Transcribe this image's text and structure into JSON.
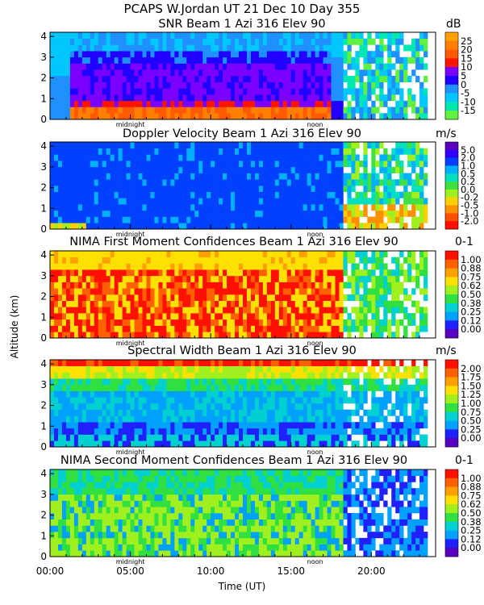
{
  "title": "PCAPS W.Jordan UT  21 Dec 10 Day 355",
  "y_axis_label": "Altitude (km)",
  "x_axis_label": "Time (UT)",
  "x_ticks": [
    "00:00",
    "05:00",
    "10:00",
    "15:00",
    "20:00"
  ],
  "x_tick_hours": [
    0,
    5,
    10,
    15,
    20
  ],
  "markers": [
    {
      "label": "midnight",
      "hour": 5.0
    },
    {
      "label": "noon",
      "hour": 16.5
    }
  ],
  "chart_data": [
    {
      "type": "heatmap",
      "title": "SNR Beam 1 Azi 316 Elev 90",
      "unit": "dB",
      "xlim": [
        0,
        24
      ],
      "ylim": [
        0,
        4.2
      ],
      "y_ticks": [
        "0",
        "1",
        "2",
        "3",
        "4"
      ],
      "colorbar_labels": [
        "25",
        "20",
        "15",
        "10",
        "5",
        "0",
        "-5",
        "-10",
        "-15"
      ],
      "colorbar_colors": [
        "#ffa000",
        "#ff8000",
        "#ff5a00",
        "#ff1400",
        "#7a00ff",
        "#2000ff",
        "#1e90ff",
        "#00c8ff",
        "#00e8b0",
        "#60f040"
      ]
    },
    {
      "type": "heatmap",
      "title": "Doppler Velocity Beam 1 Azi 316 Elev 90",
      "unit": "m/s",
      "xlim": [
        0,
        24
      ],
      "ylim": [
        0,
        4.2
      ],
      "y_ticks": [
        "0",
        "1",
        "2",
        "3",
        "4"
      ],
      "colorbar_labels": [
        "5.0",
        "2.0",
        "1.0",
        "0.5",
        "0.2",
        "0.0",
        "-0.2",
        "-0.5",
        "-1.0",
        "-2.0"
      ],
      "colorbar_colors": [
        "#5a00c0",
        "#3000ff",
        "#0040ff",
        "#00b0ff",
        "#00e0c0",
        "#40e040",
        "#a0f020",
        "#ffd000",
        "#ff9000",
        "#ff5000",
        "#ff1000"
      ]
    },
    {
      "type": "heatmap",
      "title": "NIMA First Moment Confidences Beam 1 Azi 316 Elev 90",
      "unit": "0-1",
      "xlim": [
        0,
        24
      ],
      "ylim": [
        0,
        4.2
      ],
      "y_ticks": [
        "0",
        "1",
        "2",
        "3",
        "4"
      ],
      "colorbar_labels": [
        "1.00",
        "0.88",
        "0.75",
        "0.62",
        "0.50",
        "0.38",
        "0.25",
        "0.12",
        "0.00"
      ],
      "colorbar_colors": [
        "#ff1000",
        "#ff6000",
        "#ffa000",
        "#ffe000",
        "#a0f020",
        "#30e040",
        "#00d0d0",
        "#00a0ff",
        "#2020ff",
        "#5a00c0"
      ]
    },
    {
      "type": "heatmap",
      "title": "Spectral Width Beam 1 Azi 316 Elev 90",
      "unit": "m/s",
      "xlim": [
        0,
        24
      ],
      "ylim": [
        0,
        4.2
      ],
      "y_ticks": [
        "0",
        "1",
        "2",
        "3",
        "4"
      ],
      "colorbar_labels": [
        "2.00",
        "1.75",
        "1.50",
        "1.25",
        "1.00",
        "0.75",
        "0.50",
        "0.25",
        "0.00"
      ],
      "colorbar_colors": [
        "#ff1000",
        "#ff6000",
        "#ffa000",
        "#ffe000",
        "#a0f020",
        "#30e040",
        "#00d0d0",
        "#00a0ff",
        "#2020ff",
        "#5a00c0"
      ]
    },
    {
      "type": "heatmap",
      "title": "NIMA Second Moment Confidences Beam 1 Azi 316 Elev 90",
      "unit": "0-1",
      "xlim": [
        0,
        24
      ],
      "ylim": [
        0,
        4.2
      ],
      "y_ticks": [
        "0",
        "1",
        "2",
        "3",
        "4"
      ],
      "colorbar_labels": [
        "1.00",
        "0.88",
        "0.75",
        "0.62",
        "0.50",
        "0.38",
        "0.25",
        "0.12",
        "0.00"
      ],
      "colorbar_colors": [
        "#ff1000",
        "#ff6000",
        "#ffa000",
        "#ffe000",
        "#a0f020",
        "#30e040",
        "#00d0d0",
        "#00a0ff",
        "#2020ff",
        "#5a00c0"
      ]
    }
  ]
}
